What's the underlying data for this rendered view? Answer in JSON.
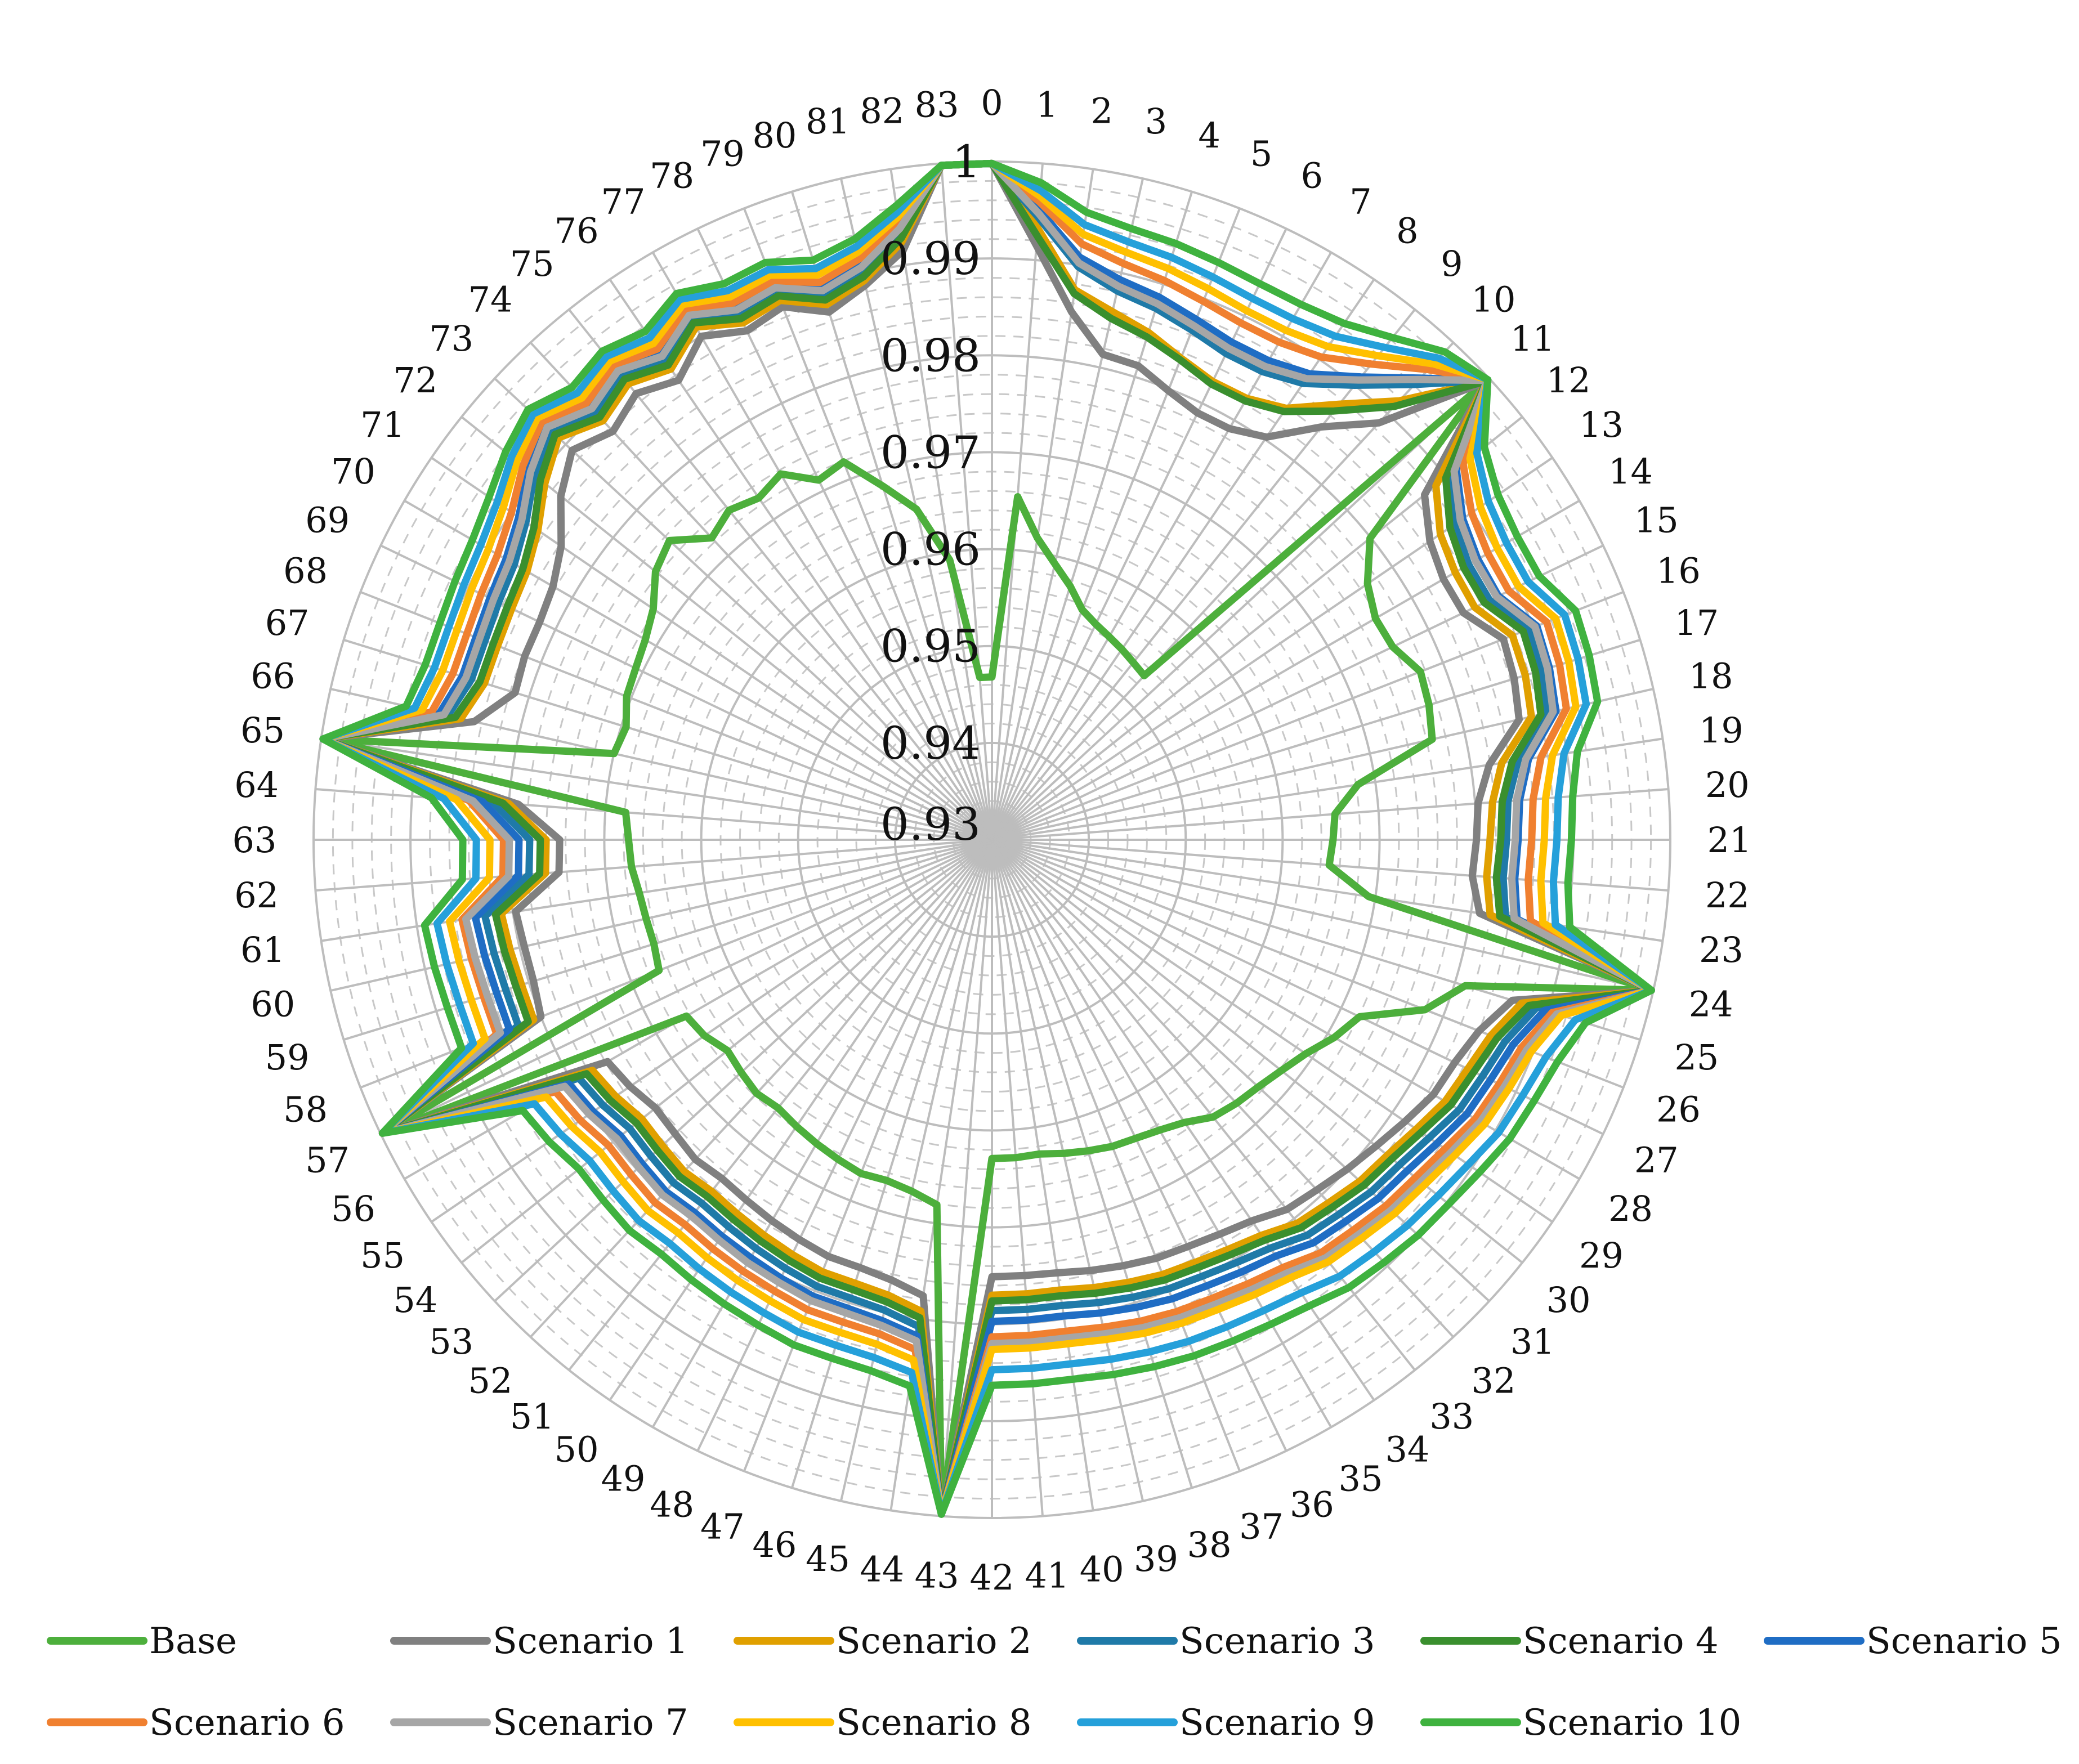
{
  "chart_data": {
    "type": "radar",
    "title": "",
    "categories": [
      "0",
      "1",
      "2",
      "3",
      "4",
      "5",
      "6",
      "7",
      "8",
      "9",
      "10",
      "11",
      "12",
      "13",
      "14",
      "15",
      "16",
      "17",
      "18",
      "19",
      "20",
      "21",
      "22",
      "23",
      "24",
      "25",
      "26",
      "27",
      "28",
      "29",
      "30",
      "31",
      "32",
      "33",
      "34",
      "35",
      "36",
      "37",
      "38",
      "39",
      "40",
      "41",
      "42",
      "43",
      "44",
      "45",
      "46",
      "47",
      "48",
      "49",
      "50",
      "51",
      "52",
      "53",
      "54",
      "55",
      "56",
      "57",
      "58",
      "59",
      "60",
      "61",
      "62",
      "63",
      "64",
      "65",
      "66",
      "67",
      "68",
      "69",
      "70",
      "71",
      "72",
      "73",
      "74",
      "75",
      "76",
      "77",
      "78",
      "79",
      "80",
      "81",
      "82",
      "83"
    ],
    "radial_ticks": [
      "0.93",
      "0.94",
      "0.95",
      "0.96",
      "0.97",
      "0.98",
      "0.99",
      "1"
    ],
    "rlim": [
      0.93,
      1.0
    ],
    "legend_position": "bottom",
    "series": [
      {
        "name": "Base",
        "color": "#4DAF3C",
        "values": [
          0.9468,
          0.9655,
          0.9615,
          0.9592,
          0.9574,
          0.9555,
          0.9547,
          0.9542,
          0.9538,
          0.9534,
          0.9531,
          0.9989,
          0.9799,
          0.9769,
          0.9757,
          0.9759,
          0.9775,
          0.9772,
          0.9766,
          0.9682,
          0.9655,
          0.9652,
          0.9649,
          0.9693,
          0.9998,
          0.9811,
          0.978,
          0.9721,
          0.9708,
          0.9692,
          0.9682,
          0.9675,
          0.9671,
          0.9666,
          0.9653,
          0.9646,
          0.9642,
          0.964,
          0.9636,
          0.9632,
          0.9628,
          0.9629,
          0.9629,
          0.9998,
          0.9681,
          0.9672,
          0.9668,
          0.967,
          0.9666,
          0.9662,
          0.9658,
          0.9654,
          0.9657,
          0.9653,
          0.9649,
          0.9659,
          0.9664,
          0.9998,
          0.9669,
          0.9665,
          0.9666,
          0.9668,
          0.9673,
          0.9675,
          0.9679,
          0.9998,
          0.97,
          0.9695,
          0.9705,
          0.9708,
          0.9713,
          0.9723,
          0.9744,
          0.9754,
          0.9725,
          0.9735,
          0.9727,
          0.9736,
          0.9712,
          0.9719,
          0.9682,
          0.965,
          0.9592,
          0.9468
        ]
      },
      {
        "name": "Scenario 1",
        "color": "#808080",
        "values": [
          0.9998,
          0.9915,
          0.9851,
          0.9814,
          0.9812,
          0.9798,
          0.9789,
          0.979,
          0.9803,
          0.9845,
          0.9887,
          0.9995,
          0.9871,
          0.9847,
          0.9838,
          0.984,
          0.9867,
          0.9864,
          0.9858,
          0.9819,
          0.9803,
          0.98,
          0.9797,
          0.9809,
          0.9998,
          0.9862,
          0.984,
          0.983,
          0.9826,
          0.9816,
          0.9807,
          0.98,
          0.9793,
          0.9788,
          0.9776,
          0.977,
          0.9766,
          0.9764,
          0.976,
          0.9756,
          0.9752,
          0.9751,
          0.9751,
          0.9998,
          0.9776,
          0.9766,
          0.9762,
          0.9762,
          0.9758,
          0.9754,
          0.975,
          0.9747,
          0.975,
          0.9746,
          0.9744,
          0.9752,
          0.9758,
          0.9998,
          0.98,
          0.9795,
          0.9795,
          0.9797,
          0.9748,
          0.9746,
          0.979,
          0.9998,
          0.9848,
          0.9815,
          0.9818,
          0.9818,
          0.9823,
          0.9838,
          0.9869,
          0.9891,
          0.9875,
          0.9889,
          0.9874,
          0.99,
          0.9883,
          0.9891,
          0.987,
          0.9887,
          0.9915,
          0.9998
        ]
      },
      {
        "name": "Scenario 2",
        "color": "#E0A000",
        "values": [
          0.9998,
          0.9933,
          0.9874,
          0.9859,
          0.9848,
          0.9834,
          0.9825,
          0.9826,
          0.9839,
          0.9875,
          0.9918,
          0.9996,
          0.9886,
          0.986,
          0.9852,
          0.9853,
          0.9877,
          0.9876,
          0.9871,
          0.9832,
          0.9818,
          0.9814,
          0.9812,
          0.982,
          0.9998,
          0.9872,
          0.9853,
          0.9845,
          0.984,
          0.983,
          0.9822,
          0.9818,
          0.9811,
          0.9806,
          0.9794,
          0.9788,
          0.9784,
          0.9782,
          0.9778,
          0.9774,
          0.977,
          0.977,
          0.977,
          0.9998,
          0.9792,
          0.9782,
          0.9779,
          0.9779,
          0.9775,
          0.9771,
          0.9767,
          0.9764,
          0.9767,
          0.9764,
          0.9762,
          0.977,
          0.9776,
          0.9998,
          0.9808,
          0.9808,
          0.981,
          0.9812,
          0.9762,
          0.976,
          0.98,
          0.9998,
          0.9862,
          0.9848,
          0.9848,
          0.985,
          0.9854,
          0.9867,
          0.989,
          0.991,
          0.989,
          0.9902,
          0.9888,
          0.9911,
          0.9892,
          0.9898,
          0.9878,
          0.9892,
          0.9924,
          0.9998
        ]
      },
      {
        "name": "Scenario 3",
        "color": "#1F7AA8",
        "values": [
          0.9998,
          0.9944,
          0.9898,
          0.9881,
          0.9874,
          0.9865,
          0.9857,
          0.9858,
          0.987,
          0.99,
          0.9941,
          0.9997,
          0.9904,
          0.9878,
          0.9868,
          0.987,
          0.9895,
          0.9893,
          0.9887,
          0.9849,
          0.9834,
          0.9831,
          0.9829,
          0.9836,
          0.9998,
          0.9888,
          0.9869,
          0.9862,
          0.9857,
          0.9846,
          0.9838,
          0.9834,
          0.9827,
          0.9822,
          0.981,
          0.9804,
          0.98,
          0.9798,
          0.9794,
          0.979,
          0.9786,
          0.9786,
          0.9786,
          0.9998,
          0.9808,
          0.9798,
          0.9795,
          0.9795,
          0.9791,
          0.9787,
          0.9783,
          0.978,
          0.9783,
          0.978,
          0.9778,
          0.9786,
          0.9792,
          0.9998,
          0.9825,
          0.9825,
          0.9827,
          0.9829,
          0.9779,
          0.9777,
          0.9816,
          0.9998,
          0.9876,
          0.9862,
          0.9862,
          0.9865,
          0.9869,
          0.9882,
          0.9904,
          0.9922,
          0.9902,
          0.9914,
          0.9899,
          0.9921,
          0.9902,
          0.9908,
          0.9888,
          0.9902,
          0.9934,
          0.9998
        ]
      },
      {
        "name": "Scenario 4",
        "color": "#3A8F2E",
        "values": [
          0.9998,
          0.9925,
          0.987,
          0.9852,
          0.9843,
          0.9832,
          0.9822,
          0.9823,
          0.9835,
          0.9866,
          0.991,
          0.9996,
          0.9899,
          0.9872,
          0.9862,
          0.9864,
          0.9889,
          0.9887,
          0.9881,
          0.9843,
          0.9828,
          0.9825,
          0.9822,
          0.983,
          0.9998,
          0.988,
          0.986,
          0.9852,
          0.9847,
          0.9836,
          0.9828,
          0.9824,
          0.9817,
          0.9812,
          0.98,
          0.9794,
          0.979,
          0.9788,
          0.9784,
          0.978,
          0.9776,
          0.9776,
          0.9776,
          0.9998,
          0.9799,
          0.9789,
          0.9786,
          0.9786,
          0.9782,
          0.9778,
          0.9774,
          0.9771,
          0.9774,
          0.9771,
          0.9769,
          0.9777,
          0.9783,
          0.9998,
          0.9814,
          0.9814,
          0.9816,
          0.9818,
          0.9768,
          0.9766,
          0.9806,
          0.9998,
          0.9868,
          0.9853,
          0.9853,
          0.9855,
          0.9859,
          0.9872,
          0.9896,
          0.9915,
          0.9895,
          0.9908,
          0.9893,
          0.9916,
          0.9897,
          0.9903,
          0.9883,
          0.9896,
          0.9928,
          0.9998
        ]
      },
      {
        "name": "Scenario 5",
        "color": "#1F6DC4",
        "values": [
          0.9998,
          0.9952,
          0.9908,
          0.9893,
          0.9886,
          0.9877,
          0.987,
          0.9871,
          0.9882,
          0.9911,
          0.995,
          0.9997,
          0.9913,
          0.9888,
          0.9879,
          0.988,
          0.9904,
          0.9902,
          0.9897,
          0.986,
          0.9846,
          0.9843,
          0.9841,
          0.9848,
          0.9998,
          0.9897,
          0.9878,
          0.9871,
          0.9866,
          0.9856,
          0.9848,
          0.9844,
          0.9837,
          0.9832,
          0.982,
          0.9815,
          0.9811,
          0.9809,
          0.9805,
          0.9801,
          0.9797,
          0.9797,
          0.9797,
          0.9998,
          0.9818,
          0.9809,
          0.9806,
          0.9806,
          0.9802,
          0.9798,
          0.9795,
          0.9792,
          0.9795,
          0.9792,
          0.979,
          0.9798,
          0.9804,
          0.9998,
          0.9835,
          0.9835,
          0.9837,
          0.9839,
          0.979,
          0.9788,
          0.9827,
          0.9998,
          0.9885,
          0.9872,
          0.9872,
          0.9875,
          0.9879,
          0.9891,
          0.9912,
          0.9929,
          0.9909,
          0.9921,
          0.9907,
          0.9928,
          0.9909,
          0.9914,
          0.9895,
          0.9909,
          0.994,
          0.9998
        ]
      },
      {
        "name": "Scenario 6",
        "color": "#F08030",
        "values": [
          0.9998,
          0.996,
          0.9922,
          0.991,
          0.9904,
          0.9897,
          0.9892,
          0.9893,
          0.9903,
          0.9928,
          0.9962,
          0.9997,
          0.9922,
          0.9899,
          0.9891,
          0.9892,
          0.9915,
          0.9913,
          0.9908,
          0.9873,
          0.986,
          0.9857,
          0.9855,
          0.9862,
          0.9998,
          0.9905,
          0.9887,
          0.9881,
          0.9876,
          0.9866,
          0.9859,
          0.9855,
          0.9849,
          0.9845,
          0.9834,
          0.9829,
          0.9825,
          0.9823,
          0.982,
          0.9816,
          0.9813,
          0.9813,
          0.9813,
          0.9998,
          0.9832,
          0.9823,
          0.9821,
          0.9821,
          0.9817,
          0.9814,
          0.9811,
          0.9808,
          0.9811,
          0.9808,
          0.9806,
          0.9814,
          0.982,
          0.9998,
          0.9849,
          0.9849,
          0.9851,
          0.9853,
          0.9806,
          0.9804,
          0.9841,
          0.9998,
          0.9893,
          0.9882,
          0.9882,
          0.9885,
          0.9889,
          0.99,
          0.9919,
          0.9934,
          0.9915,
          0.9926,
          0.9913,
          0.9932,
          0.9915,
          0.9919,
          0.9902,
          0.9915,
          0.9944,
          0.9998
        ]
      },
      {
        "name": "Scenario 7",
        "color": "#A6A6A6",
        "values": [
          0.9998,
          0.9948,
          0.9902,
          0.9886,
          0.9879,
          0.987,
          0.9863,
          0.9864,
          0.9876,
          0.9907,
          0.9948,
          0.9997,
          0.991,
          0.9885,
          0.9876,
          0.9878,
          0.9902,
          0.99,
          0.9894,
          0.9857,
          0.9843,
          0.984,
          0.9838,
          0.9845,
          0.9998,
          0.991,
          0.9893,
          0.9887,
          0.9882,
          0.9873,
          0.9866,
          0.9862,
          0.9856,
          0.9852,
          0.9841,
          0.9836,
          0.9832,
          0.983,
          0.9827,
          0.9823,
          0.982,
          0.982,
          0.982,
          0.9998,
          0.9823,
          0.9814,
          0.9811,
          0.9811,
          0.9807,
          0.9804,
          0.98,
          0.9797,
          0.98,
          0.9797,
          0.9795,
          0.9803,
          0.9809,
          0.9998,
          0.9845,
          0.9845,
          0.9847,
          0.9849,
          0.98,
          0.9798,
          0.9837,
          0.9998,
          0.988,
          0.9868,
          0.9868,
          0.9871,
          0.9875,
          0.9887,
          0.9909,
          0.9926,
          0.9907,
          0.9919,
          0.9904,
          0.9925,
          0.9907,
          0.9912,
          0.9893,
          0.9906,
          0.9938,
          0.9998
        ]
      },
      {
        "name": "Scenario 8",
        "color": "#FFC000",
        "values": [
          0.9998,
          0.9966,
          0.9932,
          0.9922,
          0.9917,
          0.9911,
          0.9906,
          0.9907,
          0.9916,
          0.9939,
          0.997,
          0.9998,
          0.9931,
          0.991,
          0.9902,
          0.9903,
          0.9925,
          0.9923,
          0.9918,
          0.9885,
          0.9873,
          0.987,
          0.9868,
          0.9875,
          0.9998,
          0.9915,
          0.9898,
          0.9892,
          0.9887,
          0.9878,
          0.9871,
          0.9867,
          0.9861,
          0.9857,
          0.9847,
          0.9842,
          0.9838,
          0.9836,
          0.9833,
          0.9829,
          0.9826,
          0.9826,
          0.9826,
          0.9998,
          0.9843,
          0.9834,
          0.9832,
          0.9832,
          0.9828,
          0.9825,
          0.9822,
          0.9819,
          0.9822,
          0.9819,
          0.9817,
          0.9825,
          0.9831,
          0.9998,
          0.9862,
          0.9862,
          0.9864,
          0.9866,
          0.982,
          0.9818,
          0.9854,
          0.9998,
          0.9903,
          0.9893,
          0.9893,
          0.9896,
          0.99,
          0.991,
          0.9927,
          0.994,
          0.9922,
          0.9932,
          0.992,
          0.9938,
          0.9922,
          0.9926,
          0.991,
          0.9922,
          0.995,
          0.9998
        ]
      },
      {
        "name": "Scenario 9",
        "color": "#25A0DA",
        "values": [
          0.9998,
          0.9972,
          0.9942,
          0.9933,
          0.9929,
          0.9924,
          0.992,
          0.9921,
          0.9929,
          0.995,
          0.9978,
          0.9998,
          0.994,
          0.992,
          0.9913,
          0.9914,
          0.9935,
          0.9933,
          0.9929,
          0.9897,
          0.9886,
          0.9883,
          0.9881,
          0.9888,
          0.9998,
          0.993,
          0.9914,
          0.9908,
          0.9904,
          0.9895,
          0.9889,
          0.9885,
          0.988,
          0.9876,
          0.9866,
          0.9861,
          0.9858,
          0.9856,
          0.9853,
          0.985,
          0.9847,
          0.9847,
          0.9847,
          0.9998,
          0.9856,
          0.9848,
          0.9846,
          0.9846,
          0.9842,
          0.9839,
          0.9836,
          0.9833,
          0.9836,
          0.9833,
          0.9831,
          0.9839,
          0.9845,
          0.9998,
          0.9875,
          0.9875,
          0.9877,
          0.9879,
          0.9834,
          0.9832,
          0.9867,
          0.9998,
          0.9911,
          0.9902,
          0.9902,
          0.9905,
          0.9909,
          0.9918,
          0.9934,
          0.9946,
          0.9929,
          0.9938,
          0.9927,
          0.9944,
          0.9929,
          0.9932,
          0.9917,
          0.9928,
          0.9955,
          0.9998
        ]
      },
      {
        "name": "Scenario 10",
        "color": "#3FB23F",
        "values": [
          0.9998,
          0.998,
          0.9955,
          0.9947,
          0.9944,
          0.994,
          0.9937,
          0.9938,
          0.9945,
          0.9963,
          0.9987,
          0.9998,
          0.995,
          0.9932,
          0.9926,
          0.9927,
          0.9947,
          0.9945,
          0.9941,
          0.9911,
          0.9901,
          0.9898,
          0.9896,
          0.9903,
          0.9998,
          0.9941,
          0.9927,
          0.9921,
          0.9917,
          0.9909,
          0.9903,
          0.99,
          0.9895,
          0.9891,
          0.9882,
          0.9877,
          0.9874,
          0.9872,
          0.9869,
          0.9866,
          0.9863,
          0.9863,
          0.9863,
          0.9998,
          0.987,
          0.9862,
          0.986,
          0.986,
          0.9856,
          0.9853,
          0.985,
          0.9847,
          0.985,
          0.9847,
          0.9845,
          0.9853,
          0.9859,
          0.9998,
          0.9888,
          0.9888,
          0.989,
          0.9892,
          0.9848,
          0.9846,
          0.988,
          0.9998,
          0.992,
          0.9912,
          0.9912,
          0.9915,
          0.9919,
          0.9928,
          0.9942,
          0.9953,
          0.9937,
          0.9945,
          0.9935,
          0.9951,
          0.9937,
          0.994,
          0.9926,
          0.9936,
          0.9962,
          0.9998
        ]
      }
    ]
  }
}
